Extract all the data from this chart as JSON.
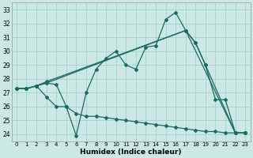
{
  "xlabel": "Humidex (Indice chaleur)",
  "xlim": [
    -0.5,
    23.5
  ],
  "ylim": [
    23.5,
    33.5
  ],
  "xticks": [
    0,
    1,
    2,
    3,
    4,
    5,
    6,
    7,
    8,
    9,
    10,
    11,
    12,
    13,
    14,
    15,
    16,
    17,
    18,
    19,
    20,
    21,
    22,
    23
  ],
  "yticks": [
    24,
    25,
    26,
    27,
    28,
    29,
    30,
    31,
    32,
    33
  ],
  "bg_color": "#cce8e4",
  "grid_color": "#a8d4cf",
  "line_color": "#1a6b60",
  "lines": [
    {
      "x": [
        0,
        1,
        2,
        3,
        4,
        5,
        6,
        7,
        8,
        9,
        10,
        11,
        12,
        13,
        14,
        15,
        16,
        17,
        18,
        19,
        20,
        21,
        22,
        23
      ],
      "y": [
        27.3,
        27.3,
        27.5,
        27.7,
        27.6,
        26.0,
        23.9,
        27.0,
        28.7,
        29.5,
        30.0,
        29.0,
        28.7,
        30.3,
        30.4,
        32.3,
        32.8,
        31.5,
        30.6,
        29.0,
        26.5,
        26.5,
        24.1,
        24.1
      ]
    },
    {
      "x": [
        0,
        1,
        2,
        3,
        17,
        22,
        23
      ],
      "y": [
        27.3,
        27.3,
        27.5,
        27.8,
        31.5,
        24.1,
        24.1
      ]
    },
    {
      "x": [
        0,
        1,
        2,
        3,
        17,
        18,
        19,
        22,
        23
      ],
      "y": [
        27.3,
        27.3,
        27.5,
        27.7,
        31.5,
        30.6,
        29.0,
        24.1,
        24.1
      ]
    },
    {
      "x": [
        0,
        1,
        2,
        3,
        4,
        5,
        6,
        7,
        8,
        9,
        10,
        11,
        12,
        13,
        14,
        15,
        16,
        17,
        18,
        19,
        20,
        21,
        22,
        23
      ],
      "y": [
        27.3,
        27.3,
        27.5,
        26.7,
        26.0,
        26.0,
        25.5,
        25.3,
        25.3,
        25.2,
        25.1,
        25.0,
        24.9,
        24.8,
        24.7,
        24.6,
        24.5,
        24.4,
        24.3,
        24.2,
        24.2,
        24.1,
        24.1,
        24.1
      ]
    }
  ],
  "marker": "D",
  "markersize": 2.0,
  "linewidth": 0.9
}
